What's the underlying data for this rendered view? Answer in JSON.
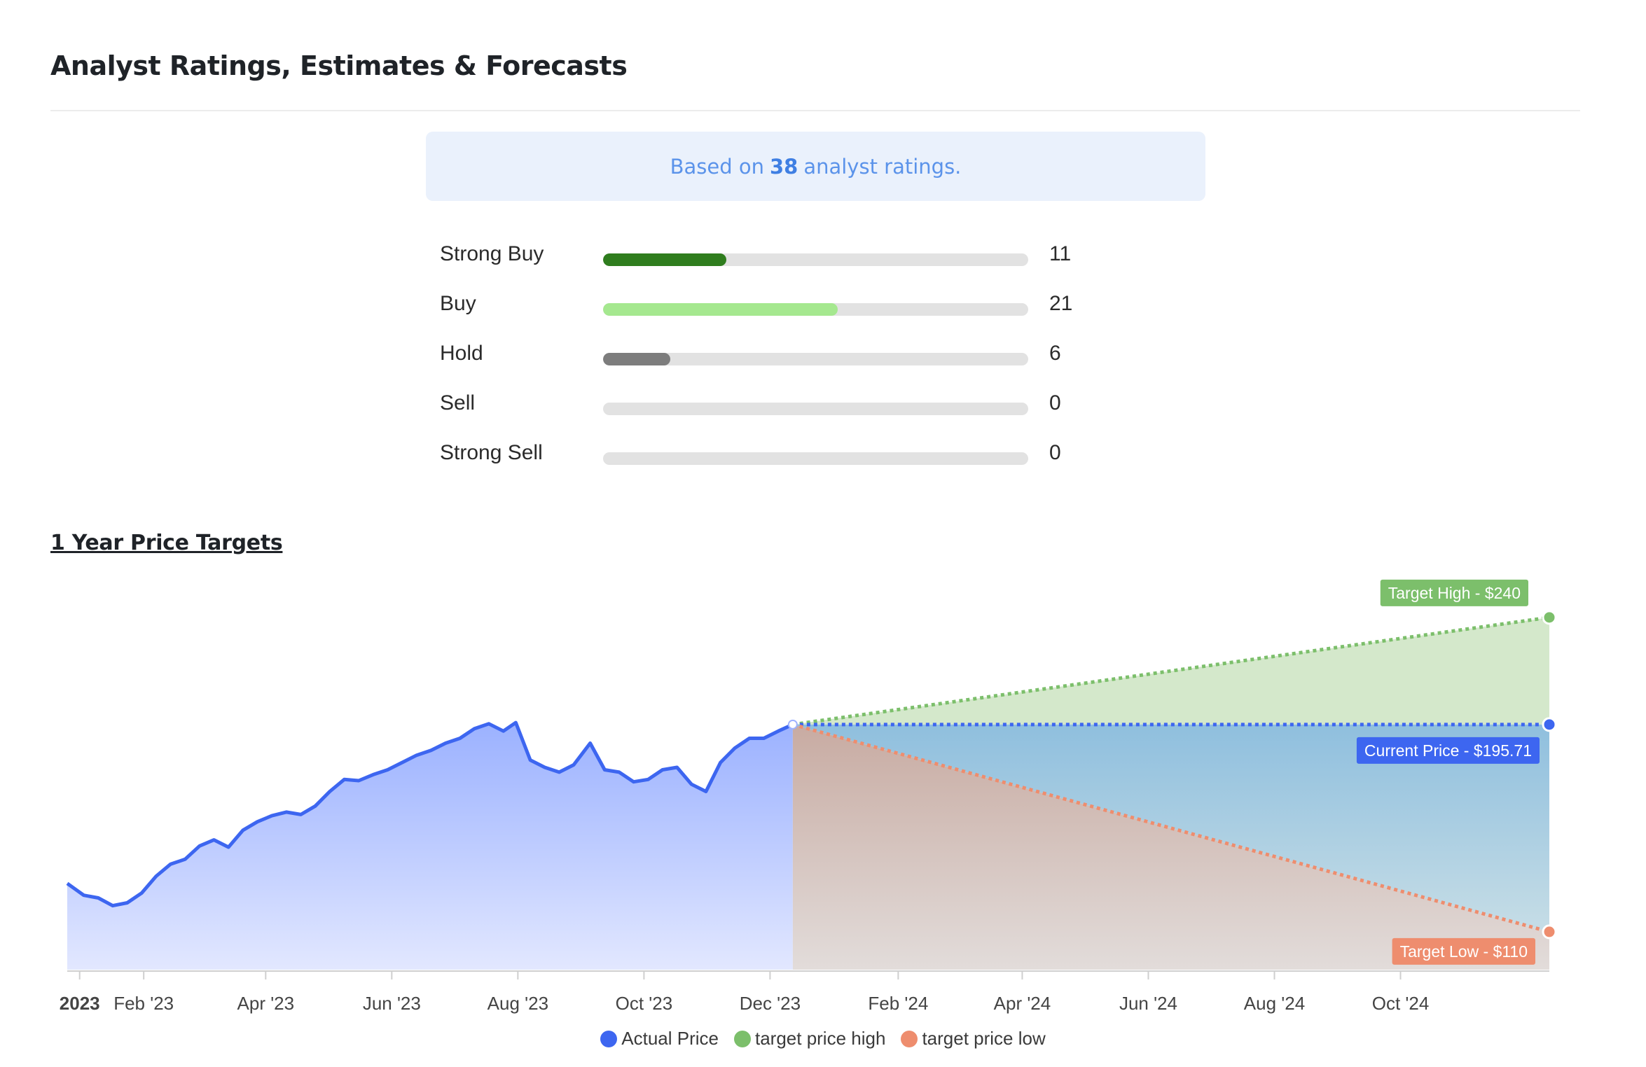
{
  "page": {
    "title": "Analyst Ratings, Estimates & Forecasts"
  },
  "summary": {
    "prefix": "Based on",
    "count": "38",
    "suffix": "analyst ratings."
  },
  "ratings": [
    {
      "label": "Strong Buy",
      "count": 11,
      "color": "#2f7d1e"
    },
    {
      "label": "Buy",
      "count": 21,
      "color": "#a5e88f"
    },
    {
      "label": "Hold",
      "count": 6,
      "color": "#7d7d7d"
    },
    {
      "label": "Sell",
      "count": 0,
      "color": "#cccccc"
    },
    {
      "label": "Strong Sell",
      "count": 0,
      "color": "#cccccc"
    }
  ],
  "ratings_max": 38,
  "section": {
    "title": "1 Year Price Targets"
  },
  "chart_data": {
    "type": "line",
    "title": "1 Year Price Targets",
    "x_tick_labels": [
      "2023",
      "Feb '23",
      "Apr '23",
      "Jun '23",
      "Aug '23",
      "Oct '23",
      "Dec '23",
      "Feb '24",
      "Apr '24",
      "Jun '24",
      "Aug '24",
      "Oct '24"
    ],
    "ylim": [
      90,
      255
    ],
    "grid": false,
    "legend_position": "bottom",
    "series": [
      {
        "name": "Actual Price",
        "color": "#3d66f0",
        "points": [
          [
            "2022-12-26",
            130.0
          ],
          [
            "2023-01-03",
            125.1
          ],
          [
            "2023-01-10",
            124.0
          ],
          [
            "2023-01-17",
            120.8
          ],
          [
            "2023-01-24",
            122.0
          ],
          [
            "2023-01-31",
            126.0
          ],
          [
            "2023-02-07",
            133.0
          ],
          [
            "2023-02-14",
            138.0
          ],
          [
            "2023-02-21",
            140.0
          ],
          [
            "2023-02-28",
            145.5
          ],
          [
            "2023-03-07",
            148.0
          ],
          [
            "2023-03-14",
            145.0
          ],
          [
            "2023-03-21",
            152.0
          ],
          [
            "2023-03-28",
            155.5
          ],
          [
            "2023-04-04",
            158.0
          ],
          [
            "2023-04-11",
            159.5
          ],
          [
            "2023-04-18",
            158.5
          ],
          [
            "2023-04-25",
            162.0
          ],
          [
            "2023-05-02",
            168.0
          ],
          [
            "2023-05-09",
            173.0
          ],
          [
            "2023-05-16",
            172.5
          ],
          [
            "2023-05-23",
            175.0
          ],
          [
            "2023-05-30",
            177.0
          ],
          [
            "2023-06-06",
            180.0
          ],
          [
            "2023-06-13",
            183.0
          ],
          [
            "2023-06-20",
            185.0
          ],
          [
            "2023-06-27",
            188.0
          ],
          [
            "2023-07-04",
            190.0
          ],
          [
            "2023-07-11",
            194.0
          ],
          [
            "2023-07-18",
            196.0
          ],
          [
            "2023-07-25",
            193.0
          ],
          [
            "2023-07-31",
            196.5
          ],
          [
            "2023-08-07",
            181.0
          ],
          [
            "2023-08-14",
            178.0
          ],
          [
            "2023-08-21",
            176.0
          ],
          [
            "2023-08-28",
            179.0
          ],
          [
            "2023-09-05",
            188.0
          ],
          [
            "2023-09-12",
            177.0
          ],
          [
            "2023-09-19",
            176.0
          ],
          [
            "2023-09-26",
            172.0
          ],
          [
            "2023-10-03",
            173.0
          ],
          [
            "2023-10-10",
            177.0
          ],
          [
            "2023-10-17",
            178.0
          ],
          [
            "2023-10-24",
            171.0
          ],
          [
            "2023-10-31",
            168.0
          ],
          [
            "2023-11-07",
            180.0
          ],
          [
            "2023-11-14",
            186.0
          ],
          [
            "2023-11-21",
            190.0
          ],
          [
            "2023-11-28",
            190.0
          ],
          [
            "2023-12-05",
            193.0
          ],
          [
            "2023-12-12",
            195.71
          ]
        ]
      },
      {
        "name": "target price high",
        "color": "#7cbf6b",
        "points": [
          [
            "2023-12-12",
            195.71
          ],
          [
            "2024-12-12",
            240
          ]
        ]
      },
      {
        "name": "target price low",
        "color": "#ee8d6e",
        "points": [
          [
            "2023-12-12",
            195.71
          ],
          [
            "2024-12-12",
            110
          ]
        ]
      }
    ],
    "annotations": [
      {
        "text": "Target High - $240",
        "value": 240,
        "color": "#7cbf6b"
      },
      {
        "text": "Current Price - $195.71",
        "value": 195.71,
        "color": "#3d66f0"
      },
      {
        "text": "Target Low - $110",
        "value": 110,
        "color": "#ee8d6e"
      }
    ]
  }
}
